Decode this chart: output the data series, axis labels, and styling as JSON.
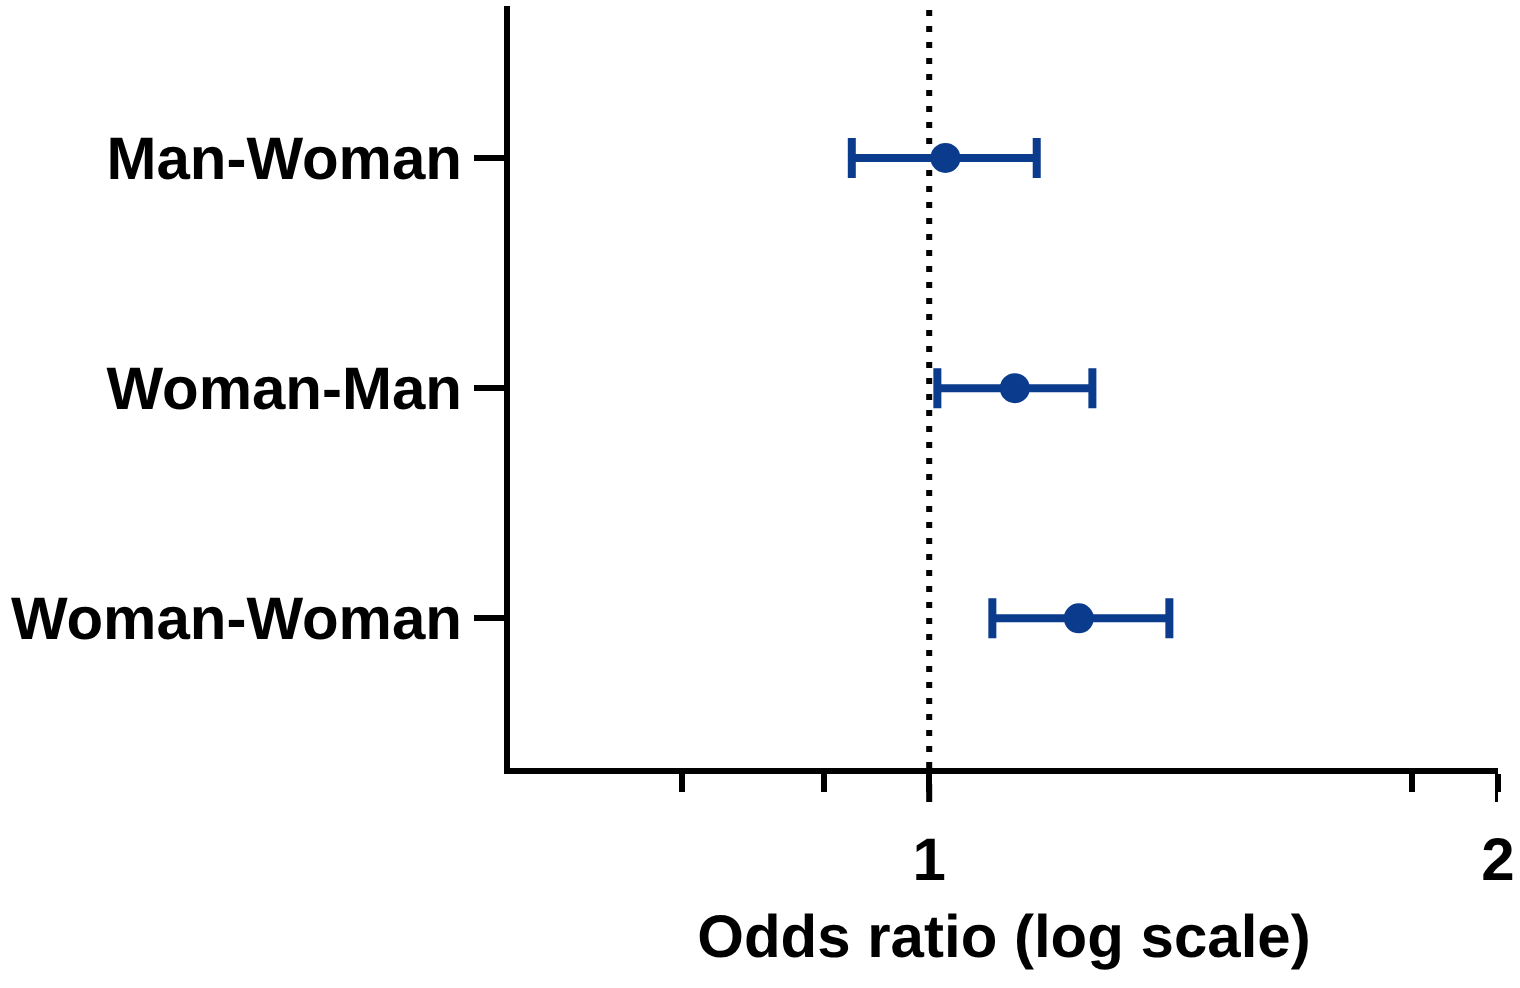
{
  "chart_data": {
    "type": "scatter",
    "orientation": "horizontal",
    "categories": [
      "Man-Woman",
      "Woman-Man",
      "Woman-Woman"
    ],
    "series": [
      {
        "color": "#0b3b8c",
        "values": [
          1.02,
          1.11,
          1.2
        ],
        "errors": [
          [
            0.91,
            1.14
          ],
          [
            1.01,
            1.22
          ],
          [
            1.08,
            1.34
          ]
        ]
      }
    ],
    "xlabel": "Odds ratio (log scale)",
    "log": "x",
    "xlim": [
      0.6,
      2
    ],
    "xticks": [
      {
        "value": 0.74,
        "label": null
      },
      {
        "value": 0.88,
        "label": null
      },
      1,
      {
        "value": 1.8,
        "label": null
      },
      2
    ],
    "ref_lines": [
      {
        "axis": "x",
        "value": 1,
        "color": "#000000",
        "line_style": "dotted"
      }
    ],
    "marker": "circle",
    "grid": false
  }
}
